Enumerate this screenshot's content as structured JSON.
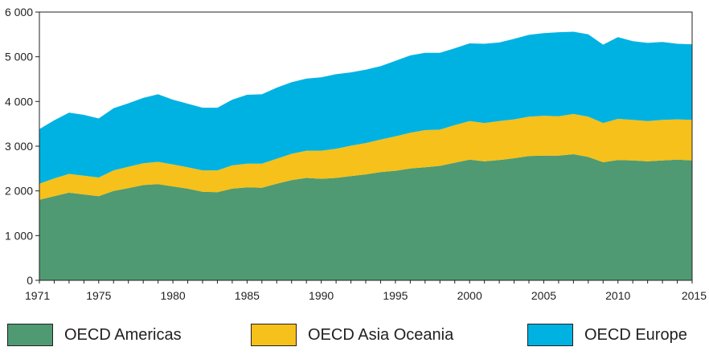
{
  "chart_data": {
    "type": "area",
    "stacked": true,
    "title": "",
    "xlabel": "",
    "ylabel": "",
    "xlim": [
      1971,
      2015
    ],
    "ylim": [
      0,
      6000
    ],
    "x_ticks": [
      1971,
      1975,
      1980,
      1985,
      1990,
      1995,
      2000,
      2005,
      2010,
      2015
    ],
    "y_ticks": [
      0,
      1000,
      2000,
      3000,
      4000,
      5000,
      6000
    ],
    "y_tick_labels": [
      "0",
      "1 000",
      "2 000",
      "3 000",
      "4 000",
      "5 000",
      "6 000"
    ],
    "grid": false,
    "legend_position": "bottom",
    "x": [
      1971,
      1972,
      1973,
      1974,
      1975,
      1976,
      1977,
      1978,
      1979,
      1980,
      1981,
      1982,
      1983,
      1984,
      1985,
      1986,
      1987,
      1988,
      1989,
      1990,
      1991,
      1992,
      1993,
      1994,
      1995,
      1996,
      1997,
      1998,
      1999,
      2000,
      2001,
      2002,
      2003,
      2004,
      2005,
      2006,
      2007,
      2008,
      2009,
      2010,
      2011,
      2012,
      2013,
      2014,
      2015
    ],
    "series": [
      {
        "name": "OECD Americas",
        "color": "#4f9a72",
        "values": [
          1800,
          1880,
          1960,
          1920,
          1880,
          2000,
          2060,
          2130,
          2150,
          2100,
          2050,
          1980,
          1970,
          2050,
          2080,
          2070,
          2160,
          2240,
          2290,
          2270,
          2290,
          2330,
          2370,
          2420,
          2450,
          2500,
          2530,
          2560,
          2630,
          2700,
          2660,
          2690,
          2730,
          2780,
          2790,
          2790,
          2820,
          2760,
          2640,
          2690,
          2680,
          2660,
          2680,
          2700,
          2680
        ]
      },
      {
        "name": "OECD Asia Oceania",
        "color": "#f5c11a",
        "values": [
          360,
          400,
          420,
          420,
          420,
          460,
          480,
          490,
          500,
          490,
          480,
          480,
          490,
          520,
          530,
          540,
          560,
          590,
          610,
          630,
          650,
          680,
          700,
          730,
          770,
          800,
          830,
          810,
          840,
          860,
          860,
          870,
          870,
          880,
          890,
          880,
          900,
          900,
          880,
          920,
          910,
          900,
          910,
          900,
          910
        ]
      },
      {
        "name": "OECD Europe",
        "color": "#00b2e2",
        "values": [
          1220,
          1300,
          1370,
          1360,
          1320,
          1390,
          1420,
          1460,
          1510,
          1450,
          1420,
          1400,
          1400,
          1470,
          1540,
          1550,
          1590,
          1600,
          1610,
          1640,
          1670,
          1640,
          1640,
          1640,
          1690,
          1730,
          1730,
          1720,
          1720,
          1740,
          1770,
          1760,
          1800,
          1830,
          1850,
          1880,
          1840,
          1840,
          1750,
          1830,
          1760,
          1750,
          1740,
          1690,
          1690
        ]
      }
    ]
  }
}
